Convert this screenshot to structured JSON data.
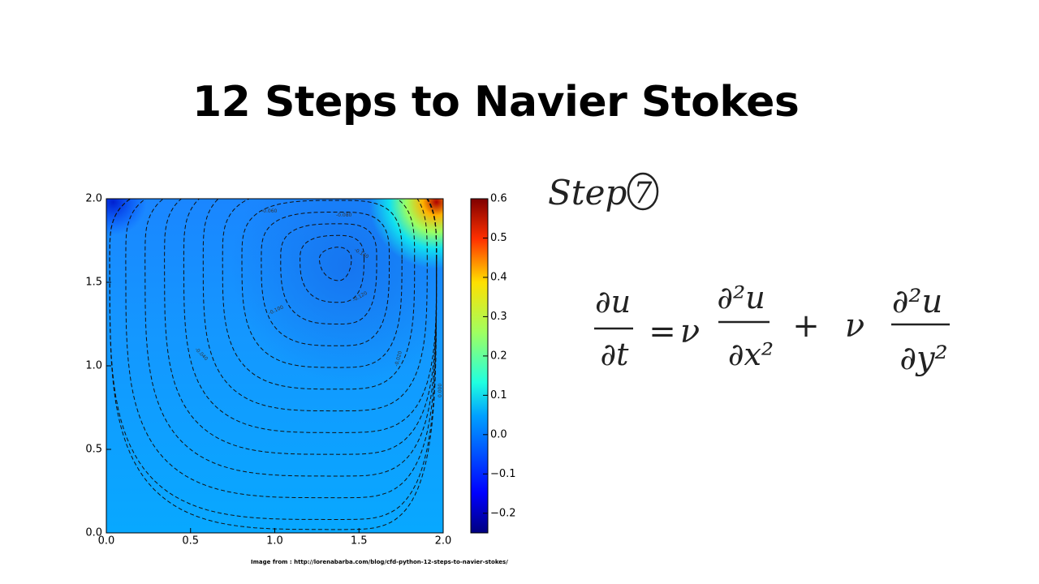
{
  "slide": {
    "title": "12 Steps to Navier Stokes",
    "caption": "Image from : http://lorenabarba.com/blog/cfd-python-12-steps-to-navier-stokes/",
    "step": {
      "label": "Step",
      "number": "7"
    },
    "equation": {
      "lhs_num": "∂u",
      "lhs_den": "∂t",
      "op1": "=",
      "coef1": "ν",
      "t1_num": "∂²u",
      "t1_den": "∂x²",
      "op2": "+",
      "coef2": "ν",
      "t2_num": "∂²u",
      "t2_den": "∂y²"
    }
  },
  "chart_data": {
    "type": "contour",
    "xlim": [
      0,
      2
    ],
    "ylim": [
      0,
      2
    ],
    "xticks": [
      {
        "value": 0,
        "label": "0.0"
      },
      {
        "value": 0.5,
        "label": "0.5"
      },
      {
        "value": 1,
        "label": "1.0"
      },
      {
        "value": 1.5,
        "label": "1.5"
      },
      {
        "value": 2,
        "label": "2.0"
      }
    ],
    "yticks": [
      {
        "value": 0,
        "label": "0.0"
      },
      {
        "value": 0.5,
        "label": "0.5"
      },
      {
        "value": 1,
        "label": "1.0"
      },
      {
        "value": 1.5,
        "label": "1.5"
      },
      {
        "value": 2,
        "label": "2.0"
      }
    ],
    "colorbar": {
      "lim": [
        -0.25,
        0.6
      ],
      "ticks": [
        {
          "value": -0.2,
          "label": "−0.2"
        },
        {
          "value": -0.1,
          "label": "−0.1"
        },
        {
          "value": 0,
          "label": "0.0"
        },
        {
          "value": 0.1,
          "label": "0.1"
        },
        {
          "value": 0.2,
          "label": "0.2"
        },
        {
          "value": 0.3,
          "label": "0.3"
        },
        {
          "value": 0.4,
          "label": "0.4"
        },
        {
          "value": 0.5,
          "label": "0.5"
        },
        {
          "value": 0.6,
          "label": "0.6"
        }
      ]
    },
    "contour_labels": [
      "-0.060",
      "-0.080",
      "-0.140",
      "-0.120",
      "-0.100",
      "-0.040",
      "-0.020",
      "0.000"
    ]
  }
}
